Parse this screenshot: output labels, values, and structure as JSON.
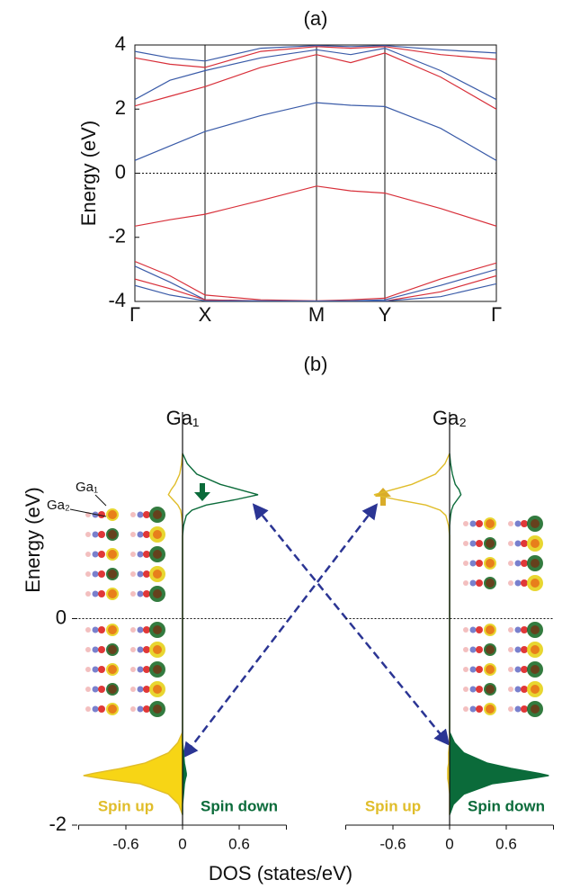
{
  "chart_data": [
    {
      "type": "line",
      "title": "(a)",
      "ylabel": "Energy (eV)",
      "x": [
        0,
        0.39,
        0.78,
        1.4,
        2.02,
        2.4,
        2.78,
        3.4,
        4.02
      ],
      "xlim": [
        0,
        4.02
      ],
      "xticks": [
        {
          "value": 0,
          "label": "Γ"
        },
        {
          "value": 0.78,
          "label": "X"
        },
        {
          "value": 2.02,
          "label": "M"
        },
        {
          "value": 2.78,
          "label": "Y"
        },
        {
          "value": 4.02,
          "label": "Γ"
        }
      ],
      "ylim": [
        -4,
        4
      ],
      "yticks": [
        -4,
        -2,
        0,
        2,
        4
      ],
      "fermi_level": 0,
      "series": [
        {
          "color": "#3a5ba8",
          "values": [
            0.4,
            0.85,
            1.3,
            1.8,
            2.2,
            2.12,
            2.08,
            1.4,
            0.4
          ]
        },
        {
          "color": "#d8303a",
          "values": [
            -1.65,
            -1.45,
            -1.28,
            -0.85,
            -0.4,
            -0.55,
            -0.62,
            -1.1,
            -1.65
          ]
        },
        {
          "color": "#d8303a",
          "values": [
            2.1,
            2.4,
            2.7,
            3.3,
            3.7,
            3.45,
            3.75,
            3.0,
            2.0
          ]
        },
        {
          "color": "#3a5ba8",
          "values": [
            2.3,
            2.9,
            3.2,
            3.6,
            3.85,
            3.7,
            3.9,
            3.2,
            2.3
          ]
        },
        {
          "color": "#d8303a",
          "values": [
            3.6,
            3.4,
            3.3,
            3.8,
            3.95,
            3.9,
            3.95,
            3.7,
            3.55
          ]
        },
        {
          "color": "#3a5ba8",
          "values": [
            3.8,
            3.6,
            3.5,
            3.9,
            3.98,
            3.95,
            3.98,
            3.85,
            3.75
          ]
        },
        {
          "color": "#d8303a",
          "values": [
            -2.75,
            -3.2,
            -3.8,
            -3.95,
            -3.98,
            -3.95,
            -3.9,
            -3.3,
            -2.8
          ]
        },
        {
          "color": "#3a5ba8",
          "values": [
            -2.9,
            -3.4,
            -3.95,
            -3.98,
            -3.99,
            -3.98,
            -3.95,
            -3.5,
            -3.0
          ]
        },
        {
          "color": "#d8303a",
          "values": [
            -3.3,
            -3.6,
            -3.95,
            -3.99,
            -3.99,
            -3.99,
            -3.99,
            -3.7,
            -3.2
          ]
        },
        {
          "color": "#3a5ba8",
          "values": [
            -3.5,
            -3.8,
            -3.98,
            -3.99,
            -3.99,
            -3.99,
            -3.99,
            -3.85,
            -3.45
          ]
        }
      ]
    },
    {
      "type": "dos",
      "panel_label": "(b)",
      "title": "Ga₁",
      "ylabel": "Energy (eV)",
      "xlabel": "DOS (states/eV)",
      "annotations": [
        "Ga₁",
        "Ga₂"
      ],
      "xlim": [
        -1.1,
        1.1
      ],
      "xticks": [
        -0.6,
        0,
        0.6
      ],
      "ylim": [
        -2,
        2
      ],
      "yticks": [
        -2,
        0
      ],
      "fermi_level": 0,
      "energy": [
        1.6,
        1.5,
        1.4,
        1.3,
        1.25,
        1.2,
        1.15,
        1.1,
        1.05,
        1.0,
        0.9,
        0.8,
        -1.1,
        -1.2,
        -1.3,
        -1.4,
        -1.45,
        -1.5,
        -1.52,
        -1.55,
        -1.6,
        -1.7,
        -1.8,
        -1.9
      ],
      "series": [
        {
          "name": "Spin up",
          "color": "#e0bd2a",
          "fill": "#f7d515",
          "values": [
            0,
            -0.01,
            -0.03,
            -0.08,
            -0.12,
            -0.15,
            -0.1,
            -0.05,
            -0.02,
            -0.01,
            0,
            0,
            0,
            -0.05,
            -0.15,
            -0.4,
            -0.65,
            -0.95,
            -1.05,
            -0.85,
            -0.45,
            -0.15,
            -0.04,
            0
          ]
        },
        {
          "name": "Spin down",
          "color": "#0b6b3a",
          "fill": "#0b6b3a",
          "values": [
            0,
            0.05,
            0.15,
            0.4,
            0.6,
            0.8,
            0.55,
            0.25,
            0.1,
            0.04,
            0.01,
            0,
            0,
            0,
            0.01,
            0.02,
            0.03,
            0.04,
            0.04,
            0.03,
            0.02,
            0.01,
            0,
            0
          ]
        }
      ]
    },
    {
      "type": "dos",
      "title": "Ga₂",
      "xlim": [
        -1.1,
        1.1
      ],
      "xticks": [
        -0.6,
        0,
        0.6
      ],
      "ylim": [
        -2,
        2
      ],
      "fermi_level": 0,
      "energy": [
        1.6,
        1.5,
        1.4,
        1.3,
        1.25,
        1.2,
        1.15,
        1.1,
        1.05,
        1.0,
        0.9,
        0.8,
        -1.1,
        -1.2,
        -1.3,
        -1.4,
        -1.45,
        -1.5,
        -1.52,
        -1.55,
        -1.6,
        -1.7,
        -1.8,
        -1.9
      ],
      "series": [
        {
          "name": "Spin up",
          "color": "#e0bd2a",
          "fill": "#f7d515",
          "values": [
            0,
            -0.05,
            -0.15,
            -0.4,
            -0.6,
            -0.8,
            -0.55,
            -0.25,
            -0.1,
            -0.04,
            -0.01,
            0,
            0,
            0,
            -0.01,
            -0.01,
            -0.02,
            -0.02,
            -0.02,
            -0.02,
            -0.01,
            0,
            0,
            0
          ]
        },
        {
          "name": "Spin down",
          "color": "#0b6b3a",
          "fill": "#0b6b3a",
          "values": [
            0,
            0.01,
            0.03,
            0.06,
            0.1,
            0.12,
            0.08,
            0.04,
            0.02,
            0.01,
            0,
            0,
            0,
            0.05,
            0.15,
            0.4,
            0.65,
            0.95,
            1.05,
            0.85,
            0.45,
            0.15,
            0.04,
            0
          ]
        }
      ]
    }
  ]
}
